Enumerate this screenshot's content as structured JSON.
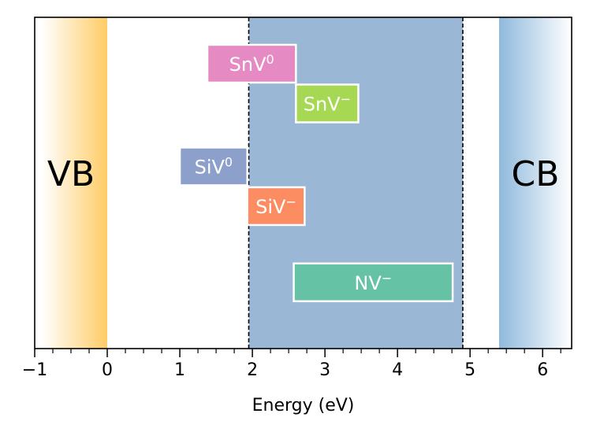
{
  "chart_data": {
    "type": "band-diagram",
    "title": "",
    "xlabel": "Energy (eV)",
    "ylabel": "",
    "xlim": [
      -1.0,
      6.4
    ],
    "xticks": [
      -1,
      0,
      1,
      2,
      3,
      4,
      5,
      6
    ],
    "xtick_labels": [
      "−1",
      "0",
      "1",
      "2",
      "3",
      "4",
      "5",
      "6"
    ],
    "minor_tick_step": 0.25,
    "grid": false,
    "valence_band": {
      "label": "VB",
      "edge": 0.0,
      "color": "#ffcc66"
    },
    "conduction_band": {
      "label": "CB",
      "edge": 5.4,
      "color": "#8fb9dc"
    },
    "window": {
      "start": 1.95,
      "end": 4.9,
      "color": "#9ab8d6"
    },
    "levels": [
      {
        "name": "SnV0",
        "label": "SnV",
        "superscript": "0",
        "start": 1.38,
        "end": 2.6,
        "row": 0.86,
        "color": "#e58ac3"
      },
      {
        "name": "SnV-",
        "label": "SnV",
        "superscript": "−",
        "start": 2.6,
        "end": 3.46,
        "row": 0.74,
        "color": "#a6d854"
      },
      {
        "name": "SiV0",
        "label": "SiV",
        "superscript": "0",
        "start": 1.0,
        "end": 1.93,
        "row": 0.55,
        "color": "#8da0cb"
      },
      {
        "name": "SiV-",
        "label": "SiV",
        "superscript": "−",
        "start": 1.93,
        "end": 2.72,
        "row": 0.43,
        "color": "#fc8d62"
      },
      {
        "name": "NV-",
        "label": "NV",
        "superscript": "−",
        "start": 2.57,
        "end": 4.76,
        "row": 0.2,
        "color": "#66c2a5"
      }
    ]
  }
}
